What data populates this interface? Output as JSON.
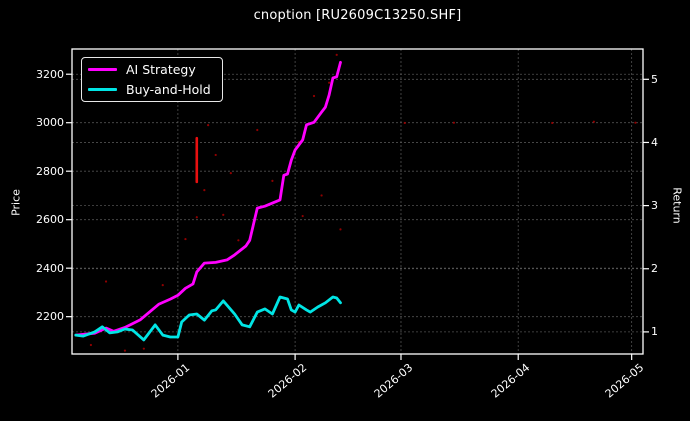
{
  "title": "cnoption [RU2609C13250.SHF]",
  "colors": {
    "background": "#000000",
    "text": "#ffffff",
    "grid": "#5f5f5f",
    "spine": "#ffffff",
    "ai_strategy": "#ff00ff",
    "buy_and_hold": "#00e5e5",
    "signal_red": "#e81010",
    "dot_red": "#a00000"
  },
  "legend": {
    "items": [
      {
        "label": "AI Strategy",
        "color": "#ff00ff"
      },
      {
        "label": "Buy-and-Hold",
        "color": "#00e5e5"
      }
    ]
  },
  "chart_data": {
    "type": "line",
    "title": "cnoption [RU2609C13250.SHF]",
    "xlabel": "",
    "ylabel_left": "Price",
    "ylabel_right": "Return",
    "grid": "dashed-both-axes",
    "legend_position": "upper-left",
    "x_range": [
      "2025-12-04",
      "2026-05-04"
    ],
    "ylim_left": [
      2046,
      3304
    ],
    "ylim_right": [
      0.65,
      5.48
    ],
    "x_ticks": [
      "2026-01",
      "2026-02",
      "2026-03",
      "2026-04",
      "2026-05"
    ],
    "y_ticks_left": [
      2200,
      2400,
      2600,
      2800,
      3000,
      3200
    ],
    "y_ticks_right": [
      1,
      2,
      3,
      4,
      5
    ],
    "series": [
      {
        "name": "AI Strategy",
        "axis": "right",
        "color": "#ff00ff",
        "points": [
          [
            "2025-12-05",
            0.95
          ],
          [
            "2025-12-10",
            0.98
          ],
          [
            "2025-12-13",
            1.06
          ],
          [
            "2025-12-15",
            1.01
          ],
          [
            "2025-12-18",
            1.07
          ],
          [
            "2025-12-22",
            1.19
          ],
          [
            "2025-12-25",
            1.34
          ],
          [
            "2025-12-27",
            1.44
          ],
          [
            "2025-12-30",
            1.52
          ],
          [
            "2026-01-01",
            1.58
          ],
          [
            "2026-01-03",
            1.69
          ],
          [
            "2026-01-05",
            1.76
          ],
          [
            "2026-01-06",
            1.95
          ],
          [
            "2026-01-08",
            2.09
          ],
          [
            "2026-01-11",
            2.1
          ],
          [
            "2026-01-14",
            2.14
          ],
          [
            "2026-01-16",
            2.22
          ],
          [
            "2026-01-19",
            2.36
          ],
          [
            "2026-01-20",
            2.45
          ],
          [
            "2026-01-22",
            2.96
          ],
          [
            "2026-01-24",
            2.99
          ],
          [
            "2026-01-26",
            3.04
          ],
          [
            "2026-01-28",
            3.09
          ],
          [
            "2026-01-29",
            3.48
          ],
          [
            "2026-01-30",
            3.5
          ],
          [
            "2026-01-31",
            3.72
          ],
          [
            "2026-02-01",
            3.88
          ],
          [
            "2026-02-03",
            4.04
          ],
          [
            "2026-02-04",
            4.28
          ],
          [
            "2026-02-06",
            4.32
          ],
          [
            "2026-02-08",
            4.48
          ],
          [
            "2026-02-09",
            4.56
          ],
          [
            "2026-02-10",
            4.75
          ],
          [
            "2026-02-11",
            5.02
          ],
          [
            "2026-02-12",
            5.04
          ],
          [
            "2026-02-13",
            5.27
          ]
        ]
      },
      {
        "name": "Buy-and-Hold",
        "axis": "left",
        "color": "#00e5e5",
        "points": [
          [
            "2025-12-05",
            2124
          ],
          [
            "2025-12-07",
            2120
          ],
          [
            "2025-12-10",
            2137
          ],
          [
            "2025-12-12",
            2158
          ],
          [
            "2025-12-14",
            2133
          ],
          [
            "2025-12-16",
            2137
          ],
          [
            "2025-12-18",
            2149
          ],
          [
            "2025-12-20",
            2145
          ],
          [
            "2025-12-23",
            2104
          ],
          [
            "2025-12-26",
            2166
          ],
          [
            "2025-12-28",
            2124
          ],
          [
            "2025-12-30",
            2116
          ],
          [
            "2026-01-01",
            2116
          ],
          [
            "2026-01-02",
            2178
          ],
          [
            "2026-01-04",
            2207
          ],
          [
            "2026-01-06",
            2211
          ],
          [
            "2026-01-08",
            2186
          ],
          [
            "2026-01-10",
            2224
          ],
          [
            "2026-01-11",
            2228
          ],
          [
            "2026-01-13",
            2265
          ],
          [
            "2026-01-16",
            2211
          ],
          [
            "2026-01-18",
            2166
          ],
          [
            "2026-01-20",
            2158
          ],
          [
            "2026-01-22",
            2219
          ],
          [
            "2026-01-24",
            2232
          ],
          [
            "2026-01-26",
            2211
          ],
          [
            "2026-01-28",
            2281
          ],
          [
            "2026-01-30",
            2273
          ],
          [
            "2026-01-31",
            2228
          ],
          [
            "2026-02-01",
            2219
          ],
          [
            "2026-02-02",
            2248
          ],
          [
            "2026-02-04",
            2228
          ],
          [
            "2026-02-05",
            2219
          ],
          [
            "2026-02-07",
            2240
          ],
          [
            "2026-02-09",
            2257
          ],
          [
            "2026-02-11",
            2281
          ],
          [
            "2026-02-12",
            2277
          ],
          [
            "2026-02-13",
            2257
          ]
        ]
      }
    ],
    "annotations": {
      "signal_line": {
        "date": "2026-01-06",
        "price_from": 2756,
        "price_to": 2936,
        "color": "#e81010"
      },
      "scatter_dots": {
        "color": "#a00000",
        "points": [
          [
            "2025-12-09",
            2083
          ],
          [
            "2025-12-13",
            2345
          ],
          [
            "2025-12-18",
            2060
          ],
          [
            "2025-12-23",
            2068
          ],
          [
            "2025-12-28",
            2330
          ],
          [
            "2026-01-03",
            2520
          ],
          [
            "2026-01-06",
            2610
          ],
          [
            "2026-01-08",
            2722
          ],
          [
            "2026-01-09",
            2990
          ],
          [
            "2026-01-11",
            2867
          ],
          [
            "2026-01-13",
            2620
          ],
          [
            "2026-01-15",
            2792
          ],
          [
            "2026-01-17",
            2515
          ],
          [
            "2026-01-22",
            2970
          ],
          [
            "2026-01-26",
            2760
          ],
          [
            "2026-02-02",
            2920
          ],
          [
            "2026-02-03",
            2615
          ],
          [
            "2026-02-06",
            3110
          ],
          [
            "2026-02-08",
            2700
          ],
          [
            "2026-02-10",
            3165
          ],
          [
            "2026-02-12",
            3280
          ],
          [
            "2026-02-13",
            2560
          ],
          [
            "2026-03-02",
            2999
          ],
          [
            "2026-03-15",
            3000
          ],
          [
            "2026-04-10",
            2999
          ],
          [
            "2026-04-21",
            3004
          ],
          [
            "2026-05-02",
            3000
          ]
        ]
      }
    }
  }
}
